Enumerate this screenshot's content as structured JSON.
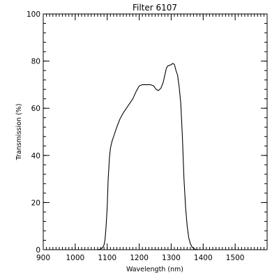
{
  "chart_data": {
    "type": "line",
    "title": "Filter 6107",
    "xlabel": "Wavelength (nm)",
    "ylabel": "Transmission (%)",
    "xlim": [
      900,
      1600
    ],
    "ylim": [
      0,
      100
    ],
    "x_ticks": [
      900,
      1000,
      1100,
      1200,
      1300,
      1400,
      1500
    ],
    "x_tick_labels": [
      "900",
      "1000",
      "1100",
      "1200",
      "1300",
      "1400",
      "1500"
    ],
    "y_ticks": [
      0,
      20,
      40,
      60,
      80,
      100
    ],
    "y_tick_labels": [
      "0",
      "20",
      "40",
      "60",
      "80",
      "100"
    ],
    "x_minor_step": 10,
    "y_minor_step": 4,
    "grid": false,
    "line_color": "#000000",
    "series": [
      {
        "x": [
          1070,
          1080,
          1085,
          1090,
          1093,
          1096,
          1100,
          1103,
          1107,
          1110,
          1115,
          1120,
          1130,
          1140,
          1150,
          1160,
          1170,
          1180,
          1190,
          1200,
          1210,
          1218,
          1225,
          1235,
          1245,
          1253,
          1260,
          1268,
          1275,
          1280,
          1285,
          1290,
          1295,
          1300,
          1305,
          1310,
          1315,
          1320,
          1325,
          1330,
          1335,
          1340,
          1345,
          1350,
          1355,
          1360,
          1365,
          1370,
          1373,
          1376,
          1379,
          1382,
          1385,
          1388,
          1391,
          1395,
          1400,
          1410,
          1420,
          1430,
          1440,
          1450,
          1455
        ],
        "y": [
          0,
          0.3,
          0.8,
          2,
          4,
          9,
          18,
          30,
          39,
          43,
          46,
          48,
          52,
          55.5,
          58,
          60,
          62,
          64,
          67,
          69.5,
          70,
          70,
          70,
          70,
          69.5,
          68,
          67.5,
          68.5,
          71,
          74,
          77,
          78,
          78.2,
          78.5,
          79,
          78.6,
          76,
          74,
          69,
          62,
          48,
          30,
          18,
          10,
          5,
          2.5,
          1.2,
          0.6,
          0.3,
          0.15,
          0.1,
          0.05,
          0,
          0,
          0,
          0,
          0,
          0,
          0,
          0,
          0,
          0,
          0
        ]
      }
    ]
  }
}
